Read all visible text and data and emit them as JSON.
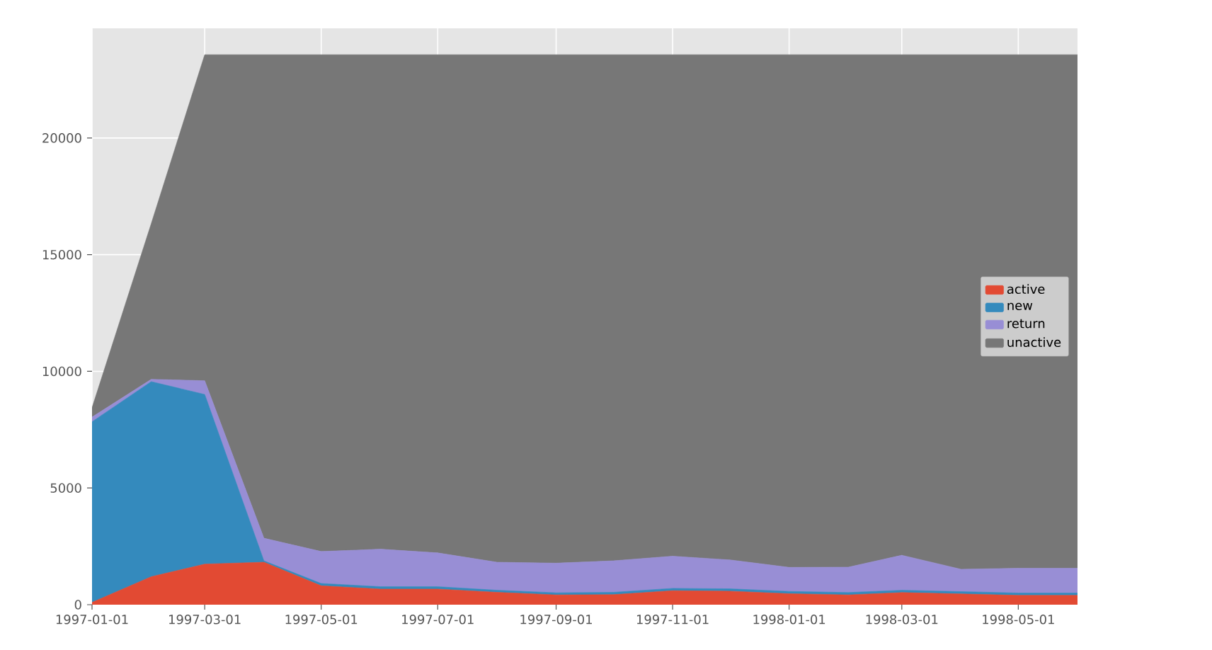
{
  "chart_data": {
    "type": "area",
    "stacked": true,
    "x": [
      "1997-01",
      "1997-02",
      "1997-03",
      "1997-04",
      "1997-05",
      "1997-06",
      "1997-07",
      "1997-08",
      "1997-09",
      "1997-10",
      "1997-11",
      "1997-12",
      "1998-01",
      "1998-02",
      "1998-03",
      "1998-04",
      "1998-05",
      "1998-06"
    ],
    "series": [
      {
        "name": "active",
        "color": "#e24a33",
        "values": [
          100,
          1200,
          1740,
          1820,
          810,
          670,
          670,
          530,
          420,
          430,
          600,
          580,
          470,
          420,
          520,
          460,
          400,
          400
        ]
      },
      {
        "name": "new",
        "color": "#348abd",
        "values": [
          7740,
          8360,
          7270,
          60,
          100,
          100,
          100,
          90,
          90,
          100,
          100,
          100,
          100,
          100,
          100,
          100,
          100,
          100
        ]
      },
      {
        "name": "return",
        "color": "#988ed5",
        "values": [
          200,
          100,
          590,
          970,
          1370,
          1610,
          1450,
          1200,
          1270,
          1350,
          1380,
          1240,
          1030,
          1090,
          1500,
          960,
          1060,
          1060
        ]
      },
      {
        "name": "unactive",
        "color": "#777777",
        "values": [
          400,
          6670,
          13970,
          20720,
          21290,
          21190,
          21350,
          21750,
          21790,
          21690,
          21490,
          21650,
          21970,
          21960,
          21450,
          22050,
          22010,
          22010
        ]
      }
    ],
    "xlim": [
      "1997-01-01",
      "1998-06-01"
    ],
    "ylim": [
      0,
      24700
    ],
    "xticks": [
      "1997-01-01",
      "1997-03-01",
      "1997-05-01",
      "1997-07-01",
      "1997-09-01",
      "1997-11-01",
      "1998-01-01",
      "1998-03-01",
      "1998-05-01"
    ],
    "yticks": [
      0,
      5000,
      10000,
      15000,
      20000
    ],
    "grid": true,
    "legend": "right"
  }
}
